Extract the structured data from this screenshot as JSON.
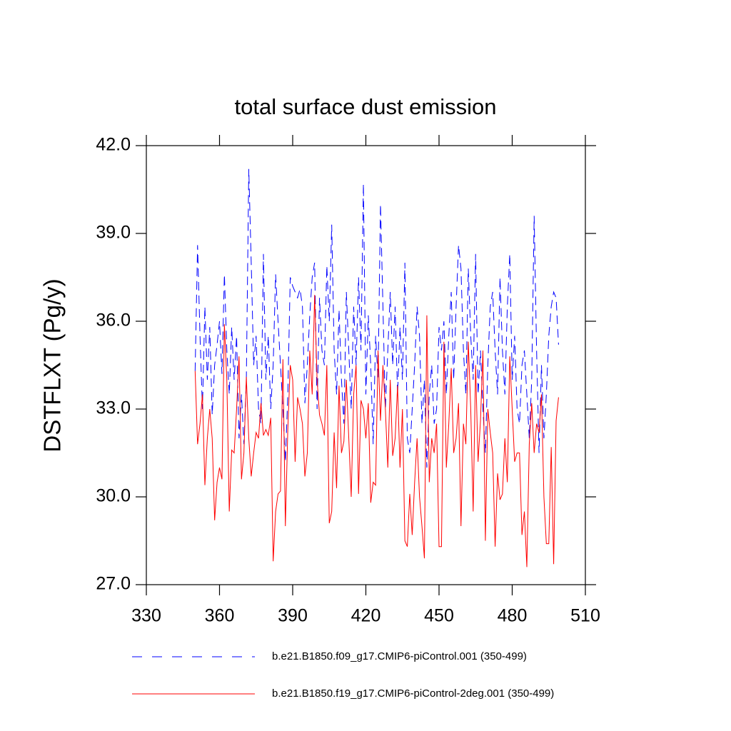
{
  "chart_data": {
    "type": "line",
    "title": "total surface dust emission",
    "ylabel": "DSTFLXT  (Pg/y)",
    "xlim": [
      330,
      510
    ],
    "xticks": [
      330,
      360,
      390,
      420,
      450,
      480,
      510
    ],
    "ylim": [
      27,
      42
    ],
    "yticks": [
      {
        "value": 27,
        "label": "27.0"
      },
      {
        "value": 30,
        "label": "30.0"
      },
      {
        "value": 33,
        "label": "33.0"
      },
      {
        "value": 36,
        "label": "36.0"
      },
      {
        "value": 39,
        "label": "39.0"
      },
      {
        "value": 42,
        "label": "42.0"
      }
    ],
    "x": [
      350,
      351,
      352,
      353,
      354,
      355,
      356,
      357,
      358,
      359,
      360,
      361,
      362,
      363,
      364,
      365,
      366,
      367,
      368,
      369,
      370,
      371,
      372,
      373,
      374,
      375,
      376,
      377,
      378,
      379,
      380,
      381,
      382,
      383,
      384,
      385,
      386,
      387,
      388,
      389,
      390,
      391,
      392,
      393,
      394,
      395,
      396,
      397,
      398,
      399,
      400,
      401,
      402,
      403,
      404,
      405,
      406,
      407,
      408,
      409,
      410,
      411,
      412,
      413,
      414,
      415,
      416,
      417,
      418,
      419,
      420,
      421,
      422,
      423,
      424,
      425,
      426,
      427,
      428,
      429,
      430,
      431,
      432,
      433,
      434,
      435,
      436,
      437,
      438,
      439,
      440,
      441,
      442,
      443,
      444,
      445,
      446,
      447,
      448,
      449,
      450,
      451,
      452,
      453,
      454,
      455,
      456,
      457,
      458,
      459,
      460,
      461,
      462,
      463,
      464,
      465,
      466,
      467,
      468,
      469,
      470,
      471,
      472,
      473,
      474,
      475,
      476,
      477,
      478,
      479,
      480,
      481,
      482,
      483,
      484,
      485,
      486,
      487,
      488,
      489,
      490,
      491,
      492,
      493,
      494,
      495,
      496,
      497,
      498,
      499
    ],
    "series": [
      {
        "name": "b.e21.B1850.f09_g17.CMIP6-piControl.001 (350-499)",
        "color": "#0000ff",
        "dashed": true,
        "values": [
          34.3,
          38.6,
          35.5,
          33.0,
          36.5,
          34.0,
          35.8,
          32.8,
          34.5,
          35.2,
          36.0,
          34.2,
          37.6,
          35.0,
          33.5,
          35.8,
          34.0,
          35.5,
          32.0,
          33.5,
          31.8,
          34.0,
          41.2,
          38.0,
          34.5,
          35.5,
          33.0,
          32.5,
          38.3,
          34.0,
          35.5,
          33.0,
          34.5,
          37.6,
          36.0,
          34.5,
          33.0,
          31.2,
          33.5,
          37.5,
          37.2,
          37.0,
          36.8,
          37.1,
          36.5,
          33.2,
          34.5,
          36.2,
          37.5,
          38.0,
          33.0,
          36.8,
          35.0,
          34.5,
          37.9,
          36.0,
          39.3,
          35.0,
          33.5,
          36.4,
          34.0,
          32.5,
          37.0,
          35.0,
          33.0,
          36.5,
          34.5,
          37.5,
          35.0,
          40.7,
          33.5,
          36.2,
          34.5,
          31.8,
          35.5,
          34.0,
          40.0,
          36.5,
          33.0,
          35.0,
          37.0,
          34.5,
          36.5,
          33.5,
          35.8,
          34.0,
          38.0,
          32.0,
          31.5,
          33.0,
          34.5,
          36.5,
          35.5,
          32.5,
          34.0,
          31.0,
          33.5,
          34.5,
          32.5,
          33.0,
          35.8,
          35.0,
          36.0,
          33.5,
          35.5,
          37.0,
          34.0,
          36.5,
          38.6,
          37.8,
          35.0,
          33.5,
          37.8,
          35.5,
          34.0,
          38.3,
          33.5,
          35.0,
          33.0,
          31.5,
          34.5,
          36.5,
          37.0,
          35.0,
          33.5,
          37.5,
          35.0,
          33.5,
          36.5,
          38.3,
          34.0,
          35.5,
          33.0,
          32.5,
          34.5,
          35.0,
          33.5,
          32.0,
          34.0,
          39.6,
          35.0,
          31.5,
          34.5,
          32.0,
          33.5,
          35.5,
          36.5,
          37.0,
          36.8,
          35.2
        ]
      },
      {
        "name": "b.e21.B1850.f19_g17.CMIP6-piControl-2deg.001 (350-499)",
        "color": "#ff0000",
        "dashed": false,
        "values": [
          34.3,
          31.8,
          32.5,
          33.5,
          30.4,
          32.0,
          33.0,
          32.0,
          29.2,
          30.5,
          31.0,
          30.6,
          35.9,
          34.0,
          29.5,
          31.6,
          31.5,
          33.0,
          34.8,
          30.6,
          31.5,
          34.1,
          32.0,
          30.7,
          31.5,
          32.2,
          32.0,
          33.2,
          32.1,
          32.3,
          32.1,
          32.7,
          27.8,
          29.5,
          30.1,
          30.2,
          34.7,
          29.0,
          32.3,
          34.5,
          34.0,
          31.2,
          33.4,
          33.0,
          32.5,
          30.7,
          31.5,
          35.0,
          33.5,
          36.9,
          34.0,
          32.8,
          32.5,
          32.1,
          34.5,
          29.1,
          29.5,
          32.2,
          30.3,
          33.8,
          31.5,
          31.9,
          34.0,
          32.0,
          30.0,
          33.5,
          34.5,
          30.1,
          33.3,
          33.0,
          32.0,
          33.2,
          29.8,
          30.5,
          30.4,
          35.0,
          32.6,
          34.5,
          33.0,
          31.0,
          34.0,
          31.4,
          32.0,
          33.8,
          31.0,
          33.0,
          28.5,
          28.3,
          30.1,
          28.7,
          30.5,
          32.0,
          30.0,
          29.0,
          27.9,
          36.2,
          30.5,
          32.0,
          31.5,
          32.5,
          28.3,
          28.3,
          35.3,
          31.0,
          32.5,
          34.4,
          31.5,
          32.0,
          33.2,
          29.0,
          32.5,
          31.8,
          35.3,
          33.0,
          29.5,
          34.5,
          31.2,
          32.6,
          35.0,
          28.5,
          33.0,
          32.2,
          31.5,
          28.3,
          30.8,
          29.9,
          30.1,
          32.0,
          30.5,
          34.8,
          33.0,
          31.2,
          31.5,
          31.5,
          28.7,
          29.5,
          27.6,
          31.8,
          33.2,
          31.5,
          32.5,
          32.2,
          33.5,
          30.0,
          28.4,
          28.4,
          31.7,
          27.7,
          32.6,
          33.4
        ]
      }
    ]
  }
}
